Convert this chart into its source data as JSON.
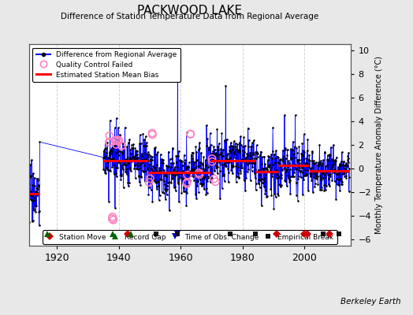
{
  "title": "PACKWOOD LAKE",
  "subtitle": "Difference of Station Temperature Data from Regional Average",
  "ylabel": "Monthly Temperature Anomaly Difference (°C)",
  "xlabel_ticks": [
    1920,
    1940,
    1960,
    1980,
    2000
  ],
  "ylim": [
    -6.5,
    10.5
  ],
  "xlim": [
    1911,
    2015
  ],
  "background_color": "#e8e8e8",
  "plot_bg_color": "#ffffff",
  "grid_color": "#c8c8c8",
  "line_color": "#0000ff",
  "dot_color": "#000000",
  "bias_color": "#ff0000",
  "qc_color": "#ff80c0",
  "station_move_color": "#cc0000",
  "record_gap_color": "#006600",
  "tobs_color": "#0000cc",
  "empirical_color": "#111111",
  "seed": 17,
  "segments": [
    {
      "start": 1911.0,
      "end": 1914.5,
      "bias": -2.1,
      "std": 1.3
    },
    {
      "start": 1935.0,
      "end": 1941.0,
      "bias": 0.8,
      "std": 1.2
    },
    {
      "start": 1941.0,
      "end": 1949.5,
      "bias": 0.7,
      "std": 1.1
    },
    {
      "start": 1949.5,
      "end": 1955.5,
      "bias": -0.35,
      "std": 1.1
    },
    {
      "start": 1955.5,
      "end": 1969.5,
      "bias": -0.2,
      "std": 1.2
    },
    {
      "start": 1969.5,
      "end": 1984.0,
      "bias": 0.75,
      "std": 1.0
    },
    {
      "start": 1984.0,
      "end": 1991.5,
      "bias": -0.25,
      "std": 1.0
    },
    {
      "start": 1991.5,
      "end": 2001.5,
      "bias": 0.3,
      "std": 1.0
    },
    {
      "start": 2001.5,
      "end": 2005.5,
      "bias": -0.15,
      "std": 1.0
    },
    {
      "start": 2005.5,
      "end": 2014.5,
      "bias": -0.2,
      "std": 1.0
    }
  ],
  "bias_lines": [
    {
      "start": 1911.0,
      "end": 1914.5,
      "bias": -2.1
    },
    {
      "start": 1935.0,
      "end": 1949.5,
      "bias": 0.7
    },
    {
      "start": 1949.5,
      "end": 1969.5,
      "bias": -0.3
    },
    {
      "start": 1969.5,
      "end": 1984.0,
      "bias": 0.7
    },
    {
      "start": 1984.0,
      "end": 1991.5,
      "bias": -0.25
    },
    {
      "start": 1991.5,
      "end": 2001.5,
      "bias": 0.3
    },
    {
      "start": 2001.5,
      "end": 2014.5,
      "bias": -0.2
    }
  ],
  "station_moves": [
    1943,
    1991,
    2000,
    2001,
    2008
  ],
  "record_gaps": [
    1917,
    1938,
    1944
  ],
  "tobs_changes": [
    1959
  ],
  "empirical_breaks": [
    1952,
    1959,
    1976,
    1984,
    2006,
    2011
  ],
  "qc_clusters": [
    {
      "year": 1937,
      "n": 4,
      "val_range": [
        1.5,
        2.8
      ]
    },
    {
      "year": 1938,
      "n": 3,
      "val_range": [
        -3.8,
        -4.5
      ]
    },
    {
      "year": 1939,
      "n": 3,
      "val_range": [
        2.0,
        3.0
      ]
    },
    {
      "year": 1940,
      "n": 2,
      "val_range": [
        1.8,
        2.5
      ]
    },
    {
      "year": 1941,
      "n": 2,
      "val_range": [
        1.5,
        2.2
      ]
    },
    {
      "year": 1950,
      "n": 2,
      "val_range": [
        -0.5,
        -1.2
      ]
    },
    {
      "year": 1951,
      "n": 2,
      "val_range": [
        2.8,
        3.5
      ]
    },
    {
      "year": 1962,
      "n": 3,
      "val_range": [
        -0.5,
        -1.5
      ]
    },
    {
      "year": 1963,
      "n": 2,
      "val_range": [
        2.5,
        3.2
      ]
    },
    {
      "year": 1966,
      "n": 2,
      "val_range": [
        -0.3,
        -1.0
      ]
    },
    {
      "year": 1970,
      "n": 2,
      "val_range": [
        0.3,
        1.0
      ]
    },
    {
      "year": 1971,
      "n": 2,
      "val_range": [
        -0.5,
        -1.2
      ]
    }
  ],
  "marker_y": -5.5,
  "berkeley_earth_text": "Berkeley Earth"
}
